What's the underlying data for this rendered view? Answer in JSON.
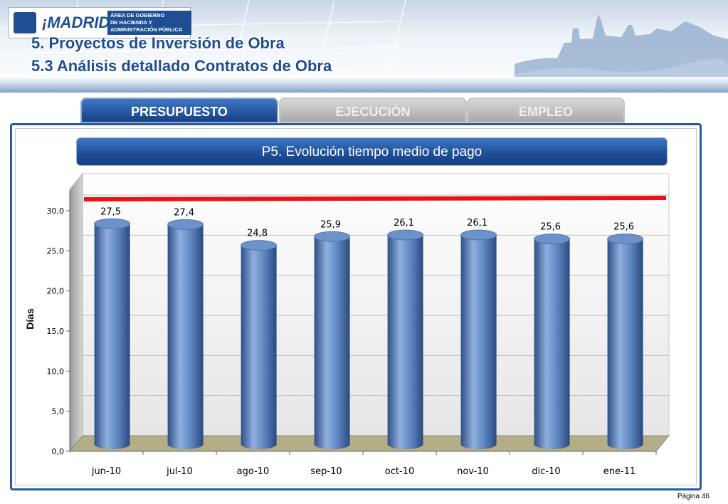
{
  "header": {
    "logo_text": "¡MADRID!",
    "logo_sub": [
      "ÁREA DE GOBIERNO",
      "DE HACIENDA Y",
      "ADMINISTRACIÓN PÚBLICA"
    ],
    "title_line1": "5. Proyectos de Inversión de Obra",
    "title_line2": "5.3 Análisis detallado Contratos de Obra"
  },
  "tabs": [
    {
      "label": "PRESUPUESTO",
      "active": true
    },
    {
      "label": "EJECUCIÓN",
      "active": false
    },
    {
      "label": "EMPLEO",
      "active": false
    }
  ],
  "chart_data": {
    "type": "bar",
    "title": "P5. Evolución tiempo medio de pago",
    "ylabel": "Días",
    "xlabel": "",
    "categories": [
      "jun-10",
      "jul-10",
      "ago-10",
      "sep-10",
      "oct-10",
      "nov-10",
      "dic-10",
      "ene-11"
    ],
    "values": [
      27.5,
      27.4,
      24.8,
      25.9,
      26.1,
      26.1,
      25.6,
      25.6
    ],
    "value_labels": [
      "27,5",
      "27,4",
      "24,8",
      "25,9",
      "26,1",
      "26,1",
      "25,6",
      "25,6"
    ],
    "ylim": [
      0,
      30
    ],
    "yticks": [
      "0,0",
      "5,0",
      "10,0",
      "15,0",
      "20,0",
      "25,0",
      "30,0"
    ],
    "reference_line": 30,
    "colors": {
      "bar": "#5f86c0",
      "bar_dark": "#2f4f86",
      "reference_line": "#ee1111",
      "floor": "#b3ad88"
    }
  },
  "footer": {
    "page": "Página 46"
  }
}
